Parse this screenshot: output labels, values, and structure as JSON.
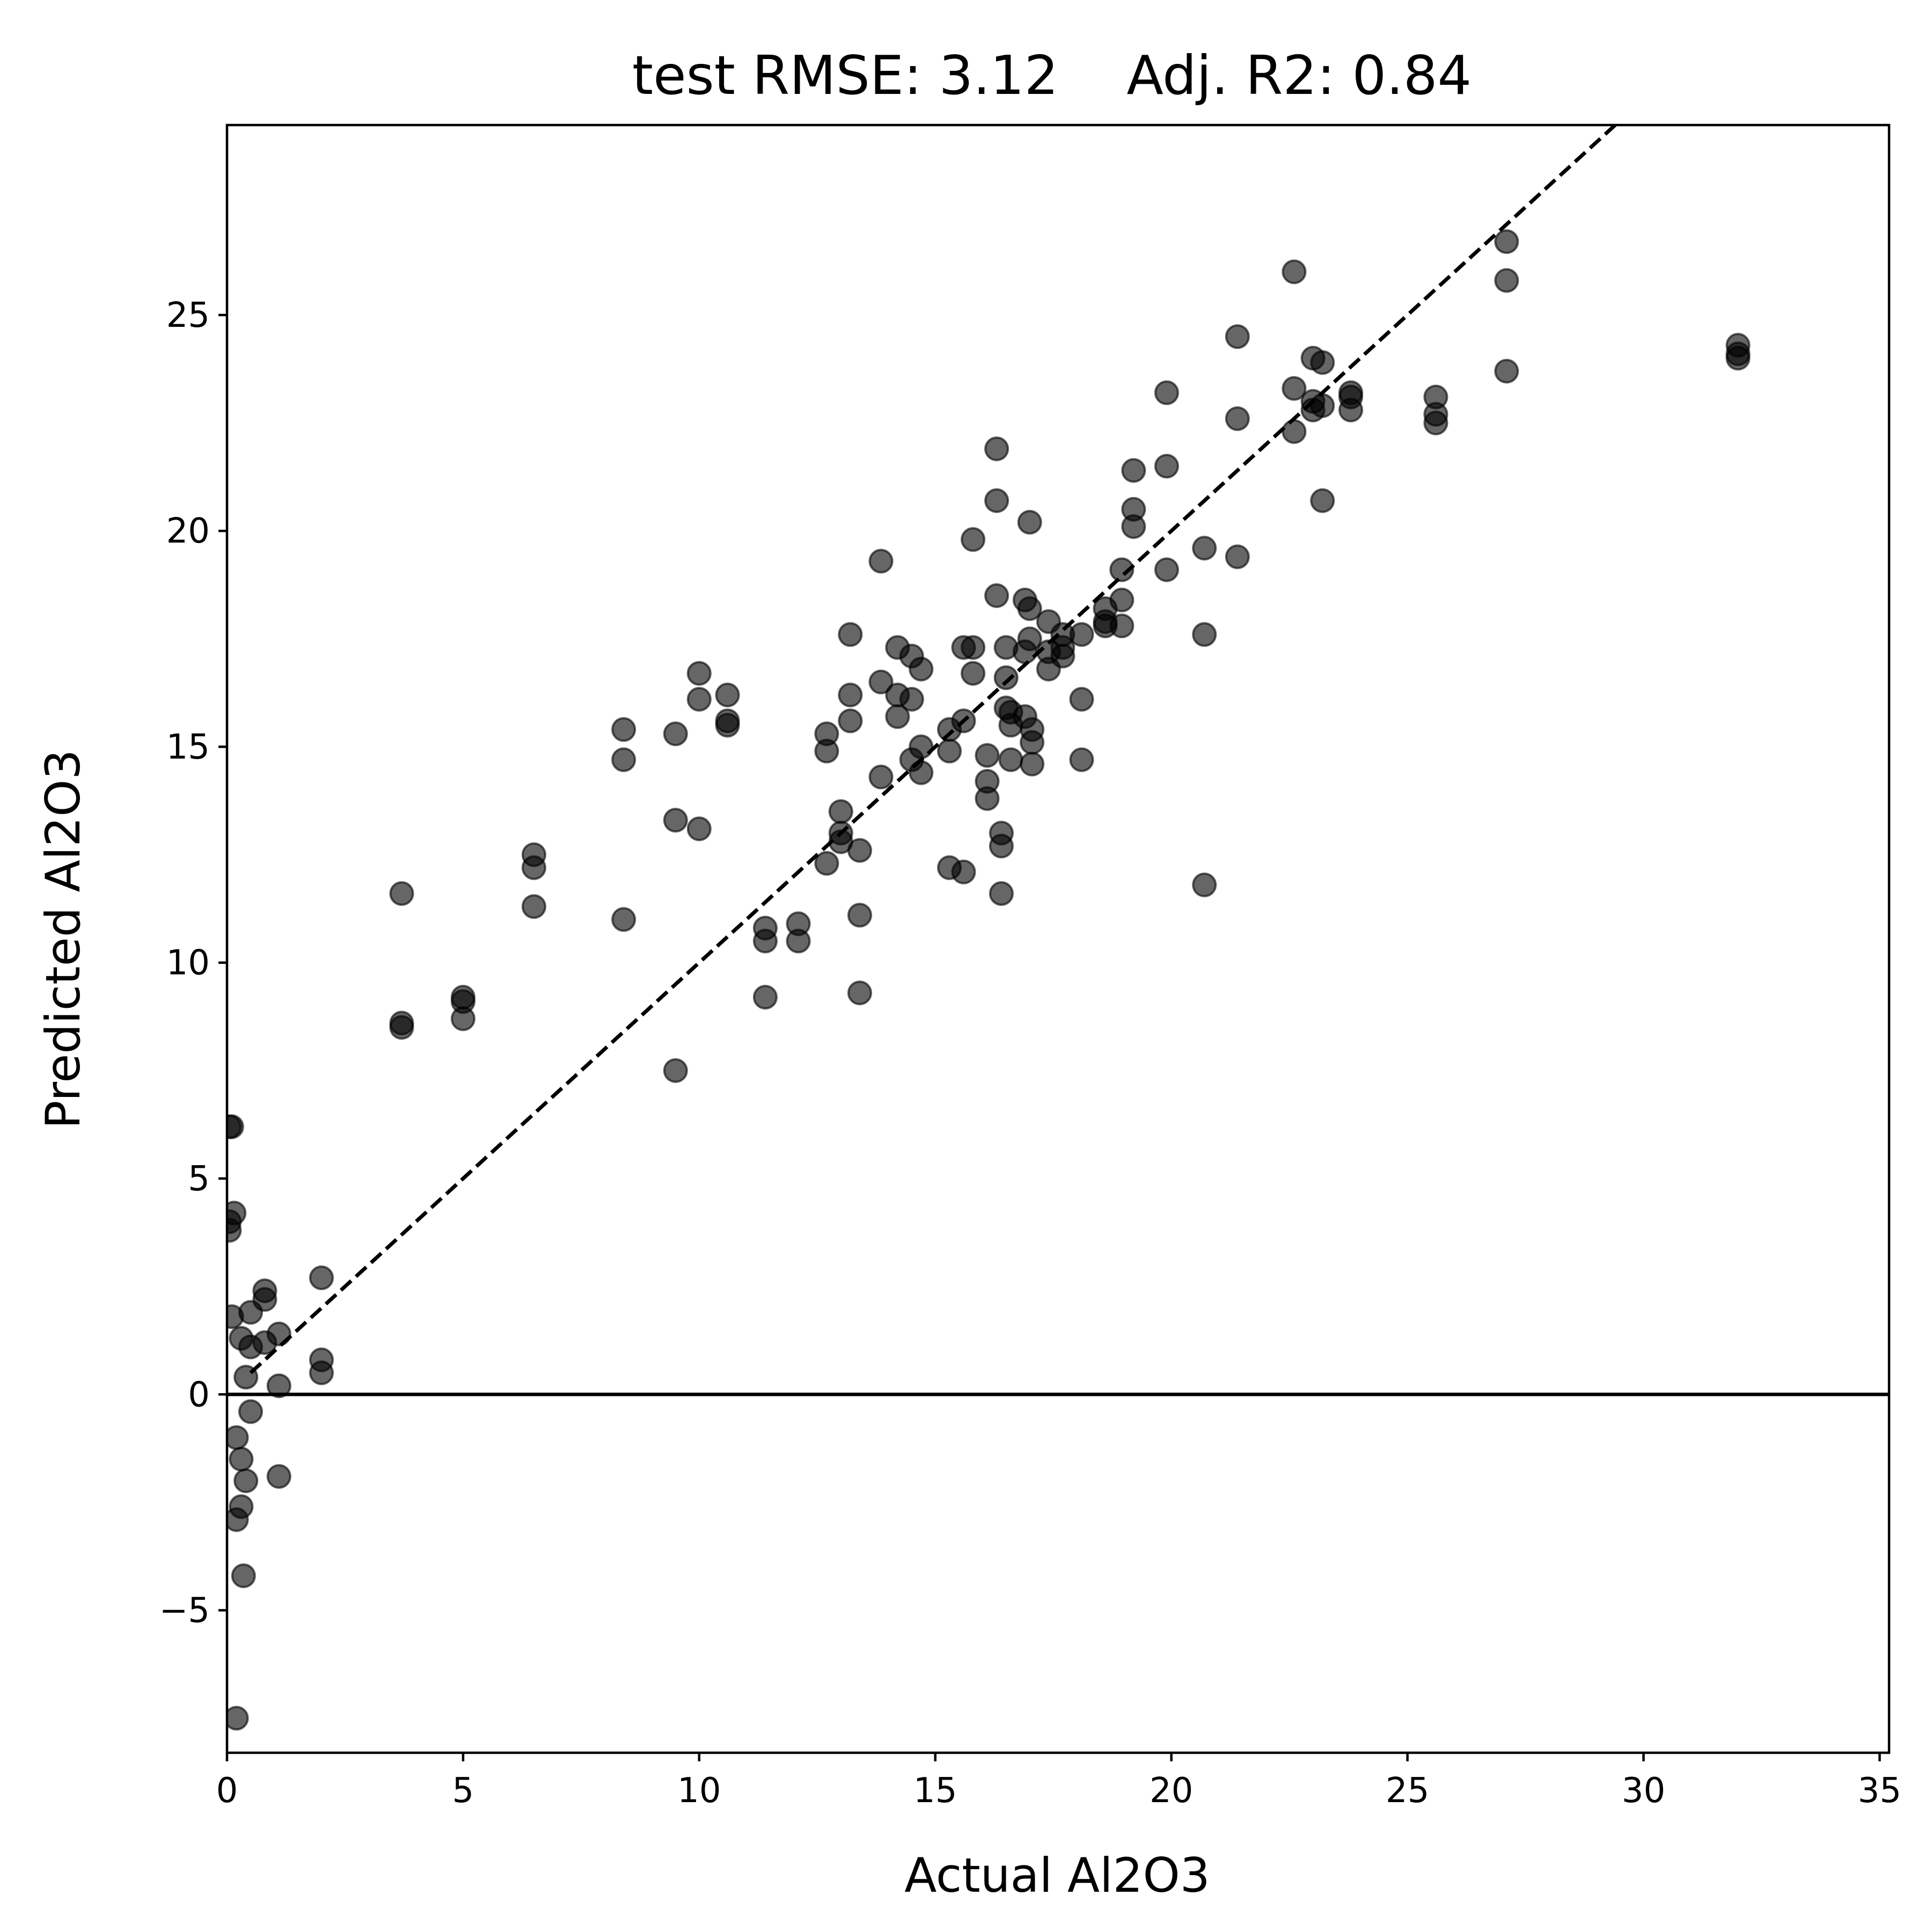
{
  "chart_data": {
    "type": "scatter",
    "title": "test RMSE: 3.12    Adj. R2: 0.84",
    "xlabel": "Actual Al2O3",
    "ylabel": "Predicted Al2O3",
    "xlim": [
      0,
      35.2
    ],
    "ylim": [
      -8.3,
      29.4
    ],
    "xticks": [
      0,
      5,
      10,
      15,
      20,
      25,
      30,
      35
    ],
    "yticks": [
      -5,
      0,
      5,
      10,
      15,
      20,
      25
    ],
    "reference_lines": [
      "y = x (dashed)",
      "y = 0 (solid)"
    ],
    "grid": false,
    "series": [
      {
        "points": [
          [
            0.1,
            6.2
          ],
          [
            0.05,
            6.2
          ],
          [
            0.15,
            4.2
          ],
          [
            0.05,
            4.0
          ],
          [
            0.05,
            3.8
          ],
          [
            0.1,
            1.8
          ],
          [
            0.5,
            1.9
          ],
          [
            0.3,
            1.3
          ],
          [
            0.5,
            1.1
          ],
          [
            0.4,
            0.4
          ],
          [
            0.8,
            2.4
          ],
          [
            0.8,
            2.2
          ],
          [
            0.8,
            1.2
          ],
          [
            1.1,
            1.4
          ],
          [
            1.1,
            0.2
          ],
          [
            0.5,
            -0.4
          ],
          [
            0.2,
            -1.0
          ],
          [
            0.3,
            -1.5
          ],
          [
            0.4,
            -2.0
          ],
          [
            0.3,
            -2.6
          ],
          [
            0.2,
            -2.9
          ],
          [
            1.1,
            -1.9
          ],
          [
            0.35,
            -4.2
          ],
          [
            0.2,
            -7.5
          ],
          [
            2.0,
            2.7
          ],
          [
            2.0,
            0.8
          ],
          [
            2.0,
            0.5
          ],
          [
            3.7,
            11.6
          ],
          [
            3.7,
            8.6
          ],
          [
            3.7,
            8.5
          ],
          [
            5.0,
            9.2
          ],
          [
            5.0,
            9.1
          ],
          [
            5.0,
            8.7
          ],
          [
            6.5,
            12.5
          ],
          [
            6.5,
            12.2
          ],
          [
            6.5,
            11.3
          ],
          [
            8.4,
            15.4
          ],
          [
            8.4,
            14.7
          ],
          [
            8.4,
            11.0
          ],
          [
            9.5,
            15.3
          ],
          [
            9.5,
            13.3
          ],
          [
            9.5,
            7.5
          ],
          [
            10.0,
            16.7
          ],
          [
            10.0,
            16.1
          ],
          [
            10.0,
            13.1
          ],
          [
            10.6,
            16.2
          ],
          [
            10.6,
            15.6
          ],
          [
            10.6,
            15.5
          ],
          [
            11.4,
            10.8
          ],
          [
            11.4,
            10.5
          ],
          [
            11.4,
            9.2
          ],
          [
            12.1,
            10.9
          ],
          [
            12.1,
            10.5
          ],
          [
            12.7,
            15.3
          ],
          [
            12.7,
            14.9
          ],
          [
            12.7,
            12.3
          ],
          [
            13.0,
            13.5
          ],
          [
            13.0,
            13.0
          ],
          [
            13.0,
            12.8
          ],
          [
            13.2,
            17.6
          ],
          [
            13.2,
            16.2
          ],
          [
            13.2,
            15.6
          ],
          [
            13.4,
            12.6
          ],
          [
            13.4,
            11.1
          ],
          [
            13.4,
            9.3
          ],
          [
            13.85,
            19.3
          ],
          [
            13.85,
            16.5
          ],
          [
            13.85,
            14.3
          ],
          [
            14.2,
            17.3
          ],
          [
            14.2,
            16.2
          ],
          [
            14.2,
            15.7
          ],
          [
            14.5,
            17.1
          ],
          [
            14.5,
            16.1
          ],
          [
            14.5,
            14.7
          ],
          [
            14.7,
            16.8
          ],
          [
            14.7,
            15.0
          ],
          [
            14.7,
            14.4
          ],
          [
            15.3,
            15.4
          ],
          [
            15.3,
            14.9
          ],
          [
            15.3,
            12.2
          ],
          [
            15.6,
            17.3
          ],
          [
            15.6,
            15.6
          ],
          [
            15.6,
            12.1
          ],
          [
            15.8,
            19.8
          ],
          [
            15.8,
            17.3
          ],
          [
            15.8,
            16.7
          ],
          [
            16.1,
            14.8
          ],
          [
            16.1,
            14.2
          ],
          [
            16.1,
            13.8
          ],
          [
            16.3,
            21.9
          ],
          [
            16.3,
            20.7
          ],
          [
            16.3,
            18.5
          ],
          [
            16.4,
            13.0
          ],
          [
            16.4,
            12.7
          ],
          [
            16.4,
            11.6
          ],
          [
            16.5,
            17.3
          ],
          [
            16.5,
            16.6
          ],
          [
            16.5,
            15.9
          ],
          [
            16.6,
            15.8
          ],
          [
            16.6,
            15.5
          ],
          [
            16.6,
            14.7
          ],
          [
            16.9,
            18.4
          ],
          [
            16.9,
            17.2
          ],
          [
            16.9,
            15.7
          ],
          [
            17.0,
            20.2
          ],
          [
            17.0,
            18.2
          ],
          [
            17.0,
            17.5
          ],
          [
            17.05,
            15.4
          ],
          [
            17.05,
            15.1
          ],
          [
            17.05,
            14.6
          ],
          [
            17.4,
            17.9
          ],
          [
            17.4,
            17.2
          ],
          [
            17.4,
            16.8
          ],
          [
            17.7,
            17.6
          ],
          [
            17.7,
            17.3
          ],
          [
            17.7,
            17.1
          ],
          [
            18.1,
            17.6
          ],
          [
            18.1,
            16.1
          ],
          [
            18.1,
            14.7
          ],
          [
            18.6,
            18.2
          ],
          [
            18.6,
            17.9
          ],
          [
            18.6,
            17.8
          ],
          [
            18.95,
            19.1
          ],
          [
            18.95,
            18.4
          ],
          [
            18.95,
            17.8
          ],
          [
            19.2,
            21.4
          ],
          [
            19.2,
            20.5
          ],
          [
            19.2,
            20.1
          ],
          [
            19.9,
            23.2
          ],
          [
            19.9,
            21.5
          ],
          [
            19.9,
            19.1
          ],
          [
            20.7,
            19.6
          ],
          [
            20.7,
            17.6
          ],
          [
            20.7,
            11.8
          ],
          [
            21.4,
            24.5
          ],
          [
            21.4,
            22.6
          ],
          [
            21.4,
            19.4
          ],
          [
            22.6,
            26.0
          ],
          [
            22.6,
            23.3
          ],
          [
            22.6,
            22.3
          ],
          [
            23.0,
            24.0
          ],
          [
            23.0,
            23.0
          ],
          [
            23.0,
            22.8
          ],
          [
            23.2,
            23.9
          ],
          [
            23.2,
            22.9
          ],
          [
            23.2,
            20.7
          ],
          [
            23.8,
            23.2
          ],
          [
            23.8,
            23.1
          ],
          [
            23.8,
            22.8
          ],
          [
            25.6,
            23.1
          ],
          [
            25.6,
            22.7
          ],
          [
            25.6,
            22.5
          ],
          [
            27.1,
            26.7
          ],
          [
            27.1,
            25.8
          ],
          [
            27.1,
            23.7
          ],
          [
            32.0,
            24.3
          ],
          [
            32.0,
            24.1
          ],
          [
            32.0,
            24.0
          ]
        ]
      }
    ]
  }
}
